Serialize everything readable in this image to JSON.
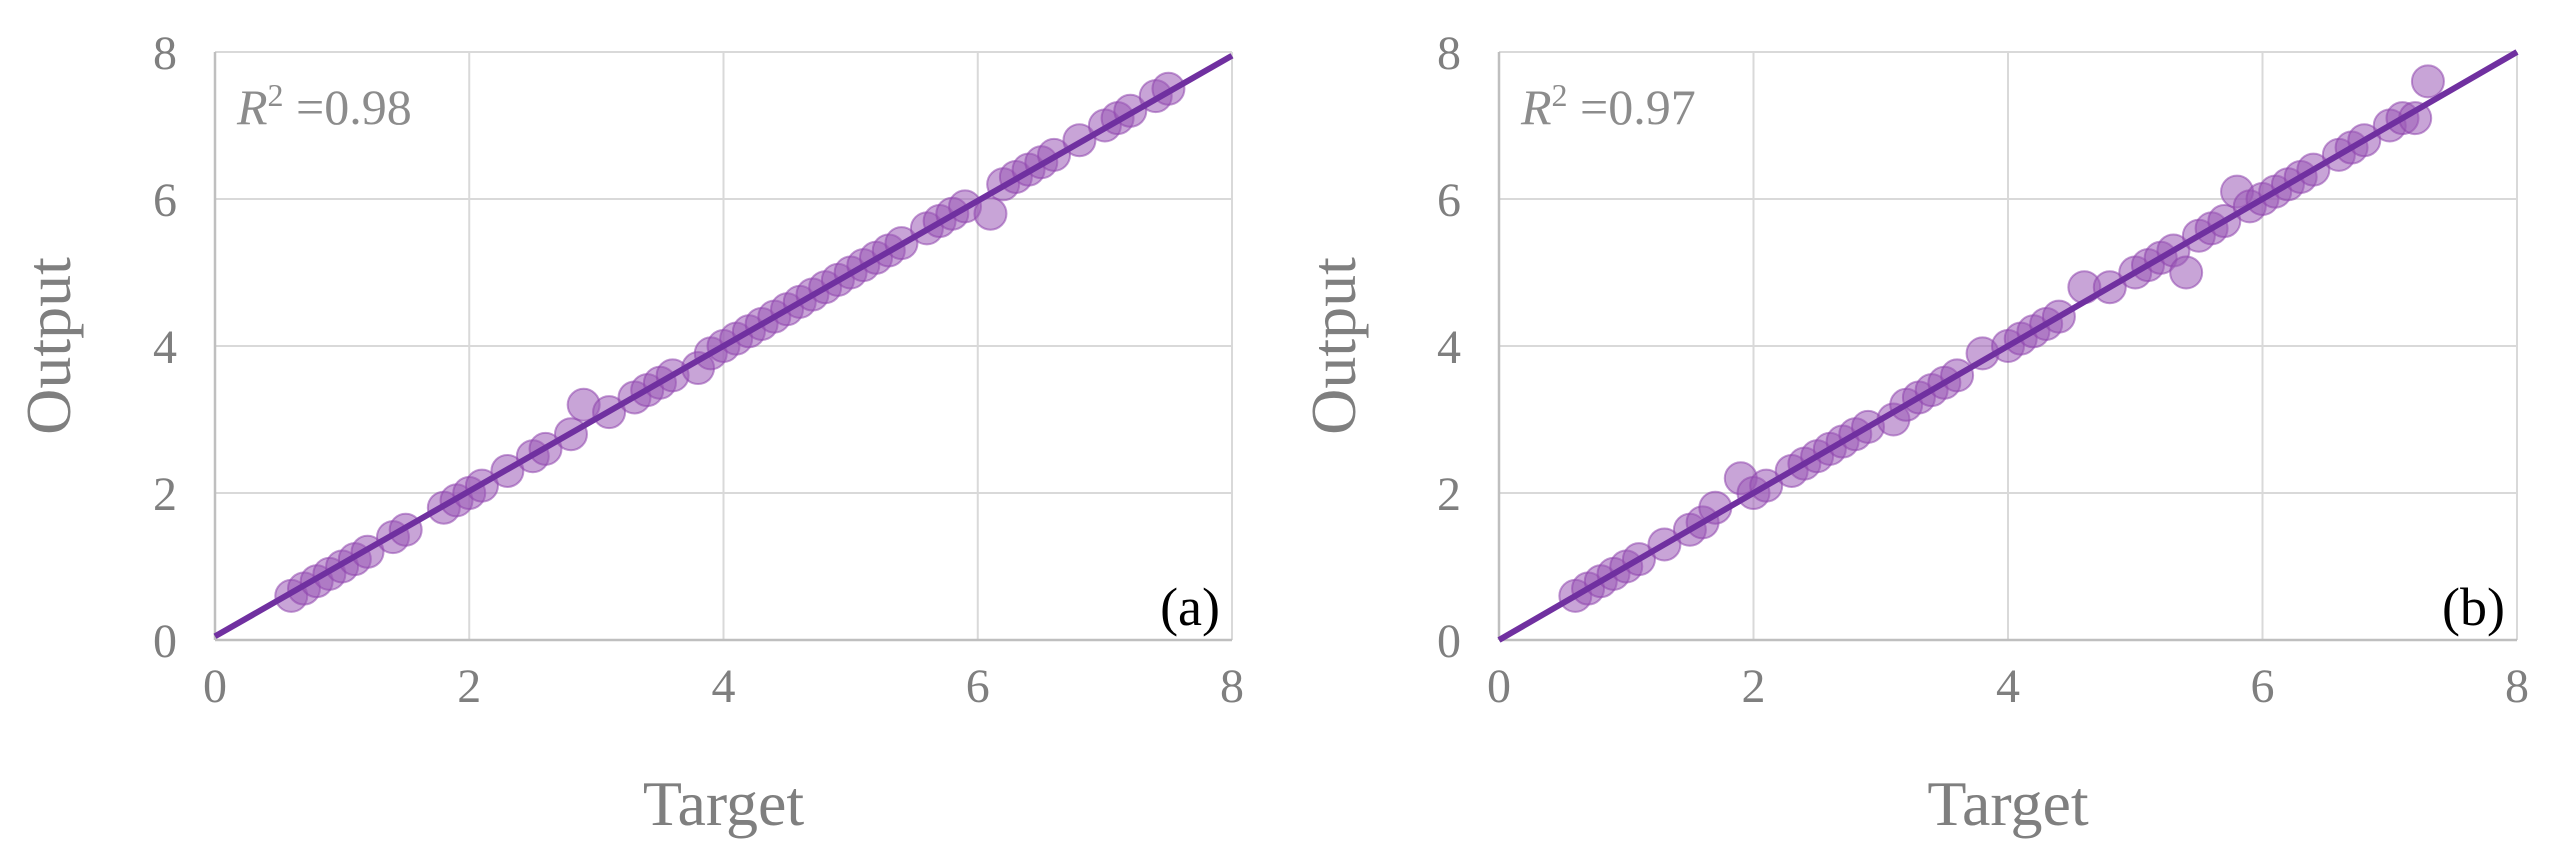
{
  "chart_data": [
    {
      "type": "scatter",
      "panel_label": "(a)",
      "annotation": {
        "prefix": "R",
        "sup": "2",
        "value": " =0.98"
      },
      "xlabel": "Target",
      "ylabel": "Output",
      "xlim": [
        0,
        8
      ],
      "ylim": [
        0,
        8
      ],
      "xticks": [
        "0",
        "2",
        "4",
        "6",
        "8"
      ],
      "yticks": [
        "0",
        "2",
        "4",
        "6",
        "8"
      ],
      "grid": true,
      "fit_line": [
        [
          0,
          0.05
        ],
        [
          8,
          7.95
        ]
      ],
      "colors": {
        "marker": "#9b59b6",
        "line": "#7030a0"
      },
      "x": [
        0.6,
        0.7,
        0.8,
        0.9,
        1.0,
        1.1,
        1.2,
        1.4,
        1.5,
        1.8,
        1.9,
        2.0,
        2.1,
        2.3,
        2.5,
        2.6,
        2.8,
        2.9,
        3.1,
        3.3,
        3.4,
        3.5,
        3.6,
        3.8,
        3.9,
        4.0,
        4.1,
        4.2,
        4.3,
        4.4,
        4.5,
        4.6,
        4.7,
        4.8,
        4.9,
        5.0,
        5.1,
        5.2,
        5.3,
        5.4,
        5.6,
        5.7,
        5.8,
        5.9,
        6.1,
        6.2,
        6.3,
        6.4,
        6.5,
        6.6,
        6.8,
        7.0,
        7.1,
        7.2,
        7.4,
        7.5
      ],
      "y": [
        0.6,
        0.7,
        0.8,
        0.9,
        1.0,
        1.1,
        1.2,
        1.4,
        1.5,
        1.8,
        1.9,
        2.0,
        2.1,
        2.3,
        2.5,
        2.6,
        2.8,
        3.2,
        3.1,
        3.3,
        3.4,
        3.5,
        3.6,
        3.7,
        3.9,
        4.0,
        4.1,
        4.2,
        4.3,
        4.4,
        4.5,
        4.6,
        4.7,
        4.8,
        4.9,
        5.0,
        5.1,
        5.2,
        5.3,
        5.4,
        5.6,
        5.7,
        5.8,
        5.9,
        5.8,
        6.2,
        6.3,
        6.4,
        6.5,
        6.6,
        6.8,
        7.0,
        7.1,
        7.2,
        7.4,
        7.5
      ]
    },
    {
      "type": "scatter",
      "panel_label": "(b)",
      "annotation": {
        "prefix": "R",
        "sup": "2",
        "value": " =0.97"
      },
      "xlabel": "Target",
      "ylabel": "Output",
      "xlim": [
        0,
        8
      ],
      "ylim": [
        0,
        8
      ],
      "xticks": [
        "0",
        "2",
        "4",
        "6",
        "8"
      ],
      "yticks": [
        "0",
        "2",
        "4",
        "6",
        "8"
      ],
      "grid": true,
      "fit_line": [
        [
          0,
          0.0
        ],
        [
          8,
          8.0
        ]
      ],
      "colors": {
        "marker": "#9b59b6",
        "line": "#7030a0"
      },
      "x": [
        0.6,
        0.7,
        0.8,
        0.9,
        1.0,
        1.1,
        1.3,
        1.5,
        1.6,
        1.7,
        1.9,
        2.0,
        2.1,
        2.3,
        2.4,
        2.5,
        2.6,
        2.7,
        2.8,
        2.9,
        3.1,
        3.2,
        3.3,
        3.4,
        3.5,
        3.6,
        3.8,
        4.0,
        4.1,
        4.2,
        4.3,
        4.4,
        4.6,
        4.8,
        5.0,
        5.1,
        5.2,
        5.3,
        5.4,
        5.5,
        5.6,
        5.7,
        5.8,
        5.9,
        6.0,
        6.1,
        6.2,
        6.3,
        6.4,
        6.6,
        6.7,
        6.8,
        7.0,
        7.1,
        7.2,
        7.3
      ],
      "y": [
        0.6,
        0.7,
        0.8,
        0.9,
        1.0,
        1.1,
        1.3,
        1.5,
        1.6,
        1.8,
        2.2,
        2.0,
        2.1,
        2.3,
        2.4,
        2.5,
        2.6,
        2.7,
        2.8,
        2.9,
        3.0,
        3.2,
        3.3,
        3.4,
        3.5,
        3.6,
        3.9,
        4.0,
        4.1,
        4.2,
        4.3,
        4.4,
        4.8,
        4.8,
        5.0,
        5.1,
        5.2,
        5.3,
        5.0,
        5.5,
        5.6,
        5.7,
        6.1,
        5.9,
        6.0,
        6.1,
        6.2,
        6.3,
        6.4,
        6.6,
        6.7,
        6.8,
        7.0,
        7.1,
        7.1,
        7.6
      ]
    }
  ]
}
